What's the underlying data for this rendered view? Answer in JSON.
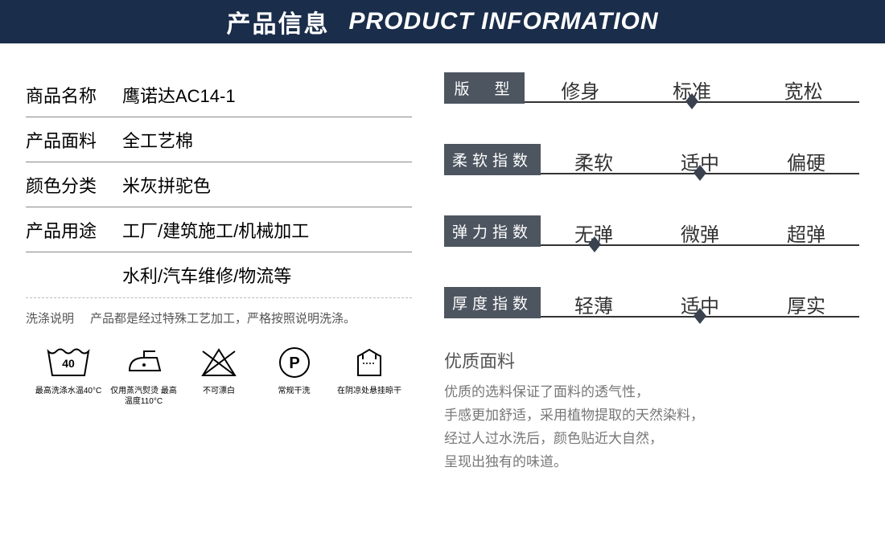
{
  "header": {
    "cn": "产品信息",
    "en": "PRODUCT INFORMATION"
  },
  "info": [
    {
      "label": "商品名称",
      "value": "鹰诺达AC14-1",
      "border": true
    },
    {
      "label": "产品面料",
      "value": "全工艺棉",
      "border": true
    },
    {
      "label": "颜色分类",
      "value": "米灰拼驼色",
      "border": true
    },
    {
      "label": "产品用途",
      "value": "工厂/建筑施工/机械加工",
      "border": true
    },
    {
      "label": "",
      "value": "水利/汽车维修/物流等",
      "border": false
    }
  ],
  "wash_note": {
    "label": "洗涤说明",
    "text": "产品都是经过特殊工艺加工，严格按照说明洗涤。"
  },
  "care": [
    {
      "label": "最高洗涤水温40°C"
    },
    {
      "label": "仅用蒸汽熨烫\n最高温度110°C"
    },
    {
      "label": "不可漂白"
    },
    {
      "label": "常规干洗"
    },
    {
      "label": "在阴凉处悬挂晾干"
    }
  ],
  "scales": [
    {
      "badge": "版　型",
      "opts": [
        "修身",
        "标准",
        "宽松"
      ],
      "marker_pct": 50
    },
    {
      "badge": "柔软指数",
      "opts": [
        "柔软",
        "适中",
        "偏硬"
      ],
      "marker_pct": 50
    },
    {
      "badge": "弹力指数",
      "opts": [
        "无弹",
        "微弹",
        "超弹"
      ],
      "marker_pct": 17
    },
    {
      "badge": "厚度指数",
      "opts": [
        "轻薄",
        "适中",
        "厚实"
      ],
      "marker_pct": 50
    }
  ],
  "material": {
    "title": "优质面料",
    "lines": [
      "优质的选料保证了面料的透气性，",
      "手感更加舒适，采用植物提取的天然染料，",
      "经过人过水洗后，颜色贴近大自然，",
      "呈现出独有的味道。"
    ]
  },
  "colors": {
    "header_bg": "#1a2d4a",
    "badge_bg": "#4d5560",
    "marker": "#3a4250"
  }
}
